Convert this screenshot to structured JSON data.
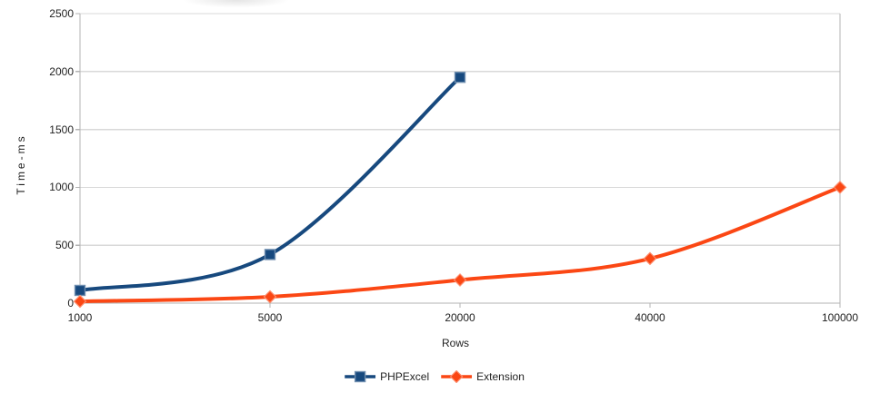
{
  "chart_data": {
    "type": "line",
    "title": "",
    "xlabel": "Rows",
    "ylabel": "Time-ms",
    "categories": [
      "1000",
      "5000",
      "20000",
      "40000",
      "100000"
    ],
    "series": [
      {
        "name": "PHPExcel",
        "color": "#17497E",
        "marker": "square",
        "values": [
          110,
          420,
          1950,
          null,
          null
        ]
      },
      {
        "name": "Extension",
        "color": "#FB4714",
        "marker": "diamond",
        "values": [
          15,
          55,
          200,
          385,
          1000
        ]
      }
    ],
    "ylim": [
      0,
      2500
    ],
    "y_ticks": [
      "0",
      "500",
      "1000",
      "1500",
      "2000",
      "2500"
    ],
    "grid": "horizontal-only",
    "legend_position": "bottom-center",
    "axis_color": "#b3b3b3",
    "gridline_color": "#d9d9d9",
    "text_color": "#1f1f1f"
  }
}
